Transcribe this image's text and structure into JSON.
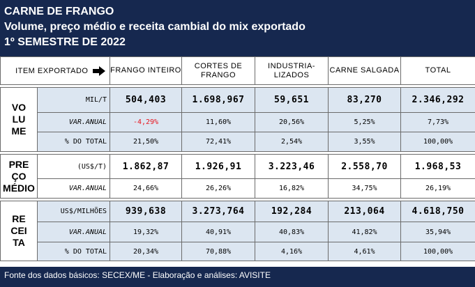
{
  "header": {
    "line1": "CARNE DE FRANGO",
    "line2": "Volume, preço médio e receita cambial do mix exportado",
    "line3": "1º SEMESTRE DE 2022"
  },
  "columns": {
    "item_label": "ITEM EXPORTADO",
    "arrow_icon": "right-arrow-icon",
    "frango_inteiro": "FRANGO INTEIRO",
    "cortes": "CORTES DE FRANGO",
    "industrializados": "INDUSTRIA-LIZADOS",
    "salgada": "CARNE SALGADA",
    "total": "TOTAL"
  },
  "volume": {
    "title": [
      "VO",
      "LU",
      "ME"
    ],
    "rows": [
      {
        "label": "MIL/T",
        "values": [
          "504,403",
          "1.698,967",
          "59,651",
          "83,270",
          "2.346,292"
        ]
      },
      {
        "label": "VAR.ANUAL",
        "values": [
          "-4,29%",
          "11,60%",
          "20,56%",
          "5,25%",
          "7,73%"
        ]
      },
      {
        "label": "% DO TOTAL",
        "values": [
          "21,50%",
          "72,41%",
          "2,54%",
          "3,55%",
          "100,00%"
        ]
      }
    ]
  },
  "preco": {
    "title": [
      "PRE",
      "ÇO",
      "MÉDIO"
    ],
    "rows": [
      {
        "label": "(US$/T)",
        "values": [
          "1.862,87",
          "1.926,91",
          "3.223,46",
          "2.558,70",
          "1.968,53"
        ]
      },
      {
        "label": "VAR.ANUAL",
        "values": [
          "24,66%",
          "26,26%",
          "16,82%",
          "34,75%",
          "26,19%"
        ]
      }
    ]
  },
  "receita": {
    "title": [
      "RE",
      "CEI",
      "TA"
    ],
    "rows": [
      {
        "label": "US$/MILHÕES",
        "values": [
          "939,638",
          "3.273,764",
          "192,284",
          "213,064",
          "4.618,750"
        ]
      },
      {
        "label": "VAR.ANUAL",
        "values": [
          "19,32%",
          "40,91%",
          "40,83%",
          "41,82%",
          "35,94%"
        ]
      },
      {
        "label": "% DO TOTAL",
        "values": [
          "20,34%",
          "70,88%",
          "4,16%",
          "4,61%",
          "100,00%"
        ]
      }
    ]
  },
  "colors": {
    "header_bg": "#16284f",
    "row_blue": "#dce6f1",
    "negative": "#e8141d"
  },
  "footer": {
    "text": "Fonte dos dados básicos: SECEX/ME - Elaboração e análises: AVISITE"
  }
}
